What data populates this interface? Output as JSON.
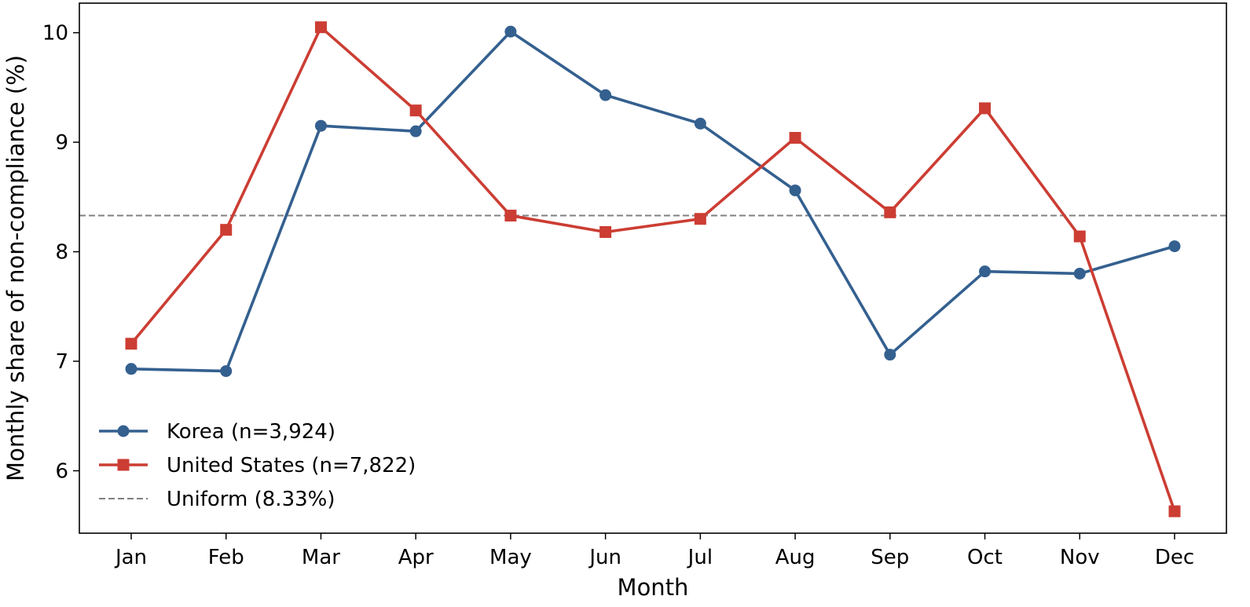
{
  "chart_data": {
    "type": "line",
    "title": "",
    "xlabel": "Month",
    "ylabel": "Monthly share of non-compliance (%)",
    "categories": [
      "Jan",
      "Feb",
      "Mar",
      "Apr",
      "May",
      "Jun",
      "Jul",
      "Aug",
      "Sep",
      "Oct",
      "Nov",
      "Dec"
    ],
    "ylim": [
      5.43,
      10.27
    ],
    "yticks": [
      "6",
      "7",
      "8",
      "9",
      "10"
    ],
    "grid": false,
    "legend_position": "lower-left",
    "series": [
      {
        "name": "Korea (n=3,924)",
        "color": "#34608f",
        "marker": "circle",
        "values": [
          6.93,
          6.91,
          9.15,
          9.1,
          10.01,
          9.43,
          9.17,
          8.56,
          7.06,
          7.82,
          7.8,
          8.05
        ]
      },
      {
        "name": "United States (n=7,822)",
        "color": "#cc3d33",
        "marker": "square",
        "values": [
          7.16,
          8.2,
          10.05,
          9.29,
          8.33,
          8.18,
          8.3,
          9.04,
          8.36,
          9.31,
          8.14,
          5.63
        ]
      }
    ],
    "reference_line": {
      "name": "Uniform (8.33%)",
      "value": 8.33,
      "color": "#808080",
      "style": "dashed"
    }
  }
}
